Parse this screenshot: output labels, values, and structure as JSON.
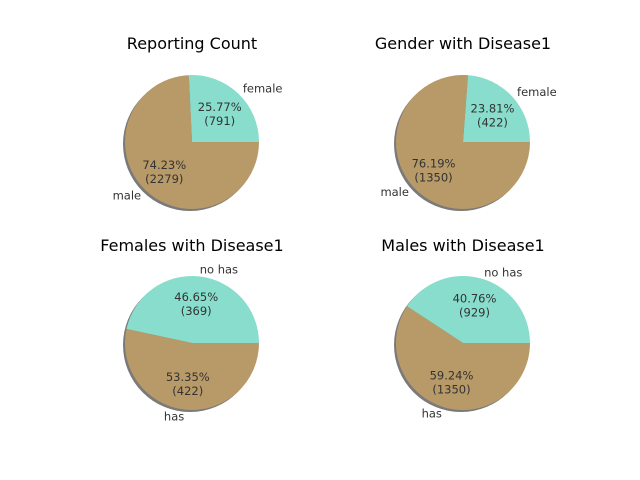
{
  "chart_data": [
    {
      "type": "pie",
      "title": "Reporting Count",
      "slices": [
        {
          "label": "female",
          "percent": "25.77%",
          "count": "(791)",
          "value": 791,
          "color": "#88ddcc"
        },
        {
          "label": "male",
          "percent": "74.23%",
          "count": "(2279)",
          "value": 2279,
          "color": "#b89968"
        }
      ]
    },
    {
      "type": "pie",
      "title": "Gender with Disease1",
      "slices": [
        {
          "label": "female",
          "percent": "23.81%",
          "count": "(422)",
          "value": 422,
          "color": "#88ddcc"
        },
        {
          "label": "male",
          "percent": "76.19%",
          "count": "(1350)",
          "value": 1350,
          "color": "#b89968"
        }
      ]
    },
    {
      "type": "pie",
      "title": "Females with Disease1",
      "slices": [
        {
          "label": "no has",
          "percent": "46.65%",
          "count": "(369)",
          "value": 369,
          "color": "#88ddcc"
        },
        {
          "label": "has",
          "percent": "53.35%",
          "count": "(422)",
          "value": 422,
          "color": "#b89968"
        }
      ]
    },
    {
      "type": "pie",
      "title": "Males with Disease1",
      "slices": [
        {
          "label": "no has",
          "percent": "40.76%",
          "count": "(929)",
          "value": 929,
          "color": "#88ddcc"
        },
        {
          "label": "has",
          "percent": "59.24%",
          "count": "(1350)",
          "value": 1350,
          "color": "#b89968"
        }
      ]
    }
  ]
}
